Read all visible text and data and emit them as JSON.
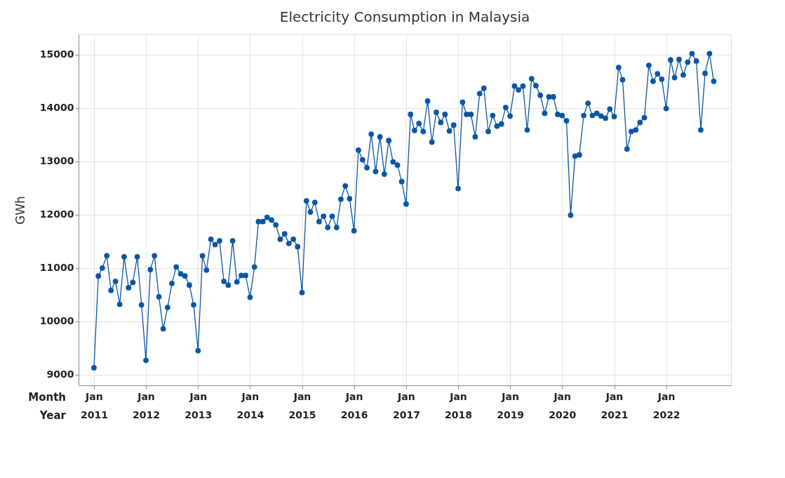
{
  "chart_data": {
    "type": "line",
    "title": "Electricity Consumption in Malaysia",
    "ylabel": "GWh",
    "annotations": [
      "Month",
      "Year"
    ],
    "x": [
      "2011-01",
      "2011-02",
      "2011-03",
      "2011-04",
      "2011-05",
      "2011-06",
      "2011-07",
      "2011-08",
      "2011-09",
      "2011-10",
      "2011-11",
      "2011-12",
      "2012-01",
      "2012-02",
      "2012-03",
      "2012-04",
      "2012-05",
      "2012-06",
      "2012-07",
      "2012-08",
      "2012-09",
      "2012-10",
      "2012-11",
      "2012-12",
      "2013-01",
      "2013-02",
      "2013-03",
      "2013-04",
      "2013-05",
      "2013-06",
      "2013-07",
      "2013-08",
      "2013-09",
      "2013-10",
      "2013-11",
      "2013-12",
      "2014-01",
      "2014-02",
      "2014-03",
      "2014-04",
      "2014-05",
      "2014-06",
      "2014-07",
      "2014-08",
      "2014-09",
      "2014-10",
      "2014-11",
      "2014-12",
      "2015-01",
      "2015-02",
      "2015-03",
      "2015-04",
      "2015-05",
      "2015-06",
      "2015-07",
      "2015-08",
      "2015-09",
      "2015-10",
      "2015-11",
      "2015-12",
      "2016-01",
      "2016-02",
      "2016-03",
      "2016-04",
      "2016-05",
      "2016-06",
      "2016-07",
      "2016-08",
      "2016-09",
      "2016-10",
      "2016-11",
      "2016-12",
      "2017-01",
      "2017-02",
      "2017-03",
      "2017-04",
      "2017-05",
      "2017-06",
      "2017-07",
      "2017-08",
      "2017-09",
      "2017-10",
      "2017-11",
      "2017-12",
      "2018-01",
      "2018-02",
      "2018-03",
      "2018-04",
      "2018-05",
      "2018-06",
      "2018-07",
      "2018-08",
      "2018-09",
      "2018-10",
      "2018-11",
      "2018-12",
      "2019-01",
      "2019-02",
      "2019-03",
      "2019-04",
      "2019-05",
      "2019-06",
      "2019-07",
      "2019-08",
      "2019-09",
      "2019-10",
      "2019-11",
      "2019-12",
      "2020-01",
      "2020-02",
      "2020-03",
      "2020-04",
      "2020-05",
      "2020-06",
      "2020-07",
      "2020-08",
      "2020-09",
      "2020-10",
      "2020-11",
      "2020-12",
      "2021-01",
      "2021-02",
      "2021-03",
      "2021-04",
      "2021-05",
      "2021-06",
      "2021-07",
      "2021-08",
      "2021-09",
      "2021-10",
      "2021-11",
      "2021-12",
      "2022-01",
      "2022-02",
      "2022-03",
      "2022-04",
      "2022-05",
      "2022-06",
      "2022-07",
      "2022-08",
      "2022-09",
      "2022-10",
      "2022-11",
      "2022-12"
    ],
    "series": [
      {
        "color": "#0b56a4",
        "values": [
          9130,
          10850,
          11000,
          11230,
          10580,
          10750,
          10320,
          11210,
          10630,
          10730,
          11210,
          10310,
          9270,
          10970,
          11230,
          10460,
          9860,
          10260,
          10710,
          11020,
          10890,
          10850,
          10680,
          10310,
          9450,
          11230,
          10960,
          11540,
          11440,
          11510,
          10750,
          10680,
          11510,
          10740,
          10860,
          10860,
          10450,
          11020,
          11870,
          11870,
          11950,
          11900,
          11810,
          11540,
          11640,
          11460,
          11540,
          11400,
          10540,
          12260,
          12050,
          12230,
          11870,
          11970,
          11760,
          11970,
          11760,
          12290,
          12540,
          12300,
          11700,
          13210,
          13030,
          12880,
          13510,
          12810,
          13460,
          12760,
          13390,
          12990,
          12930,
          12620,
          12200,
          13880,
          13580,
          13710,
          13560,
          14130,
          13360,
          13920,
          13730,
          13880,
          13570,
          13680,
          12490,
          14110,
          13880,
          13880,
          13460,
          14270,
          14370,
          13560,
          13860,
          13660,
          13700,
          14010,
          13850,
          14410,
          14340,
          14410,
          13590,
          14550,
          14420,
          14240,
          13900,
          14210,
          14210,
          13880,
          13860,
          13760,
          11990,
          13100,
          13120,
          13860,
          14090,
          13860,
          13900,
          13850,
          13810,
          13980,
          13840,
          14760,
          14530,
          13230,
          13560,
          13590,
          13730,
          13820,
          14800,
          14500,
          14640,
          14540,
          13990,
          14900,
          14570,
          14910,
          14620,
          14860,
          15020,
          14880,
          13590,
          14650,
          15020,
          14500
        ]
      }
    ],
    "xlim": [
      "2010-09-15",
      "2023-04-01"
    ],
    "xticks": [
      {
        "value": "2011-01",
        "label": "Jan\n2011"
      },
      {
        "value": "2012-01",
        "label": "Jan\n2012"
      },
      {
        "value": "2013-01",
        "label": "Jan\n2013"
      },
      {
        "value": "2014-01",
        "label": "Jan\n2014"
      },
      {
        "value": "2015-01",
        "label": "Jan\n2015"
      },
      {
        "value": "2016-01",
        "label": "Jan\n2016"
      },
      {
        "value": "2017-01",
        "label": "Jan\n2017"
      },
      {
        "value": "2018-01",
        "label": "Jan\n2018"
      },
      {
        "value": "2019-01",
        "label": "Jan\n2019"
      },
      {
        "value": "2020-01",
        "label": "Jan\n2020"
      },
      {
        "value": "2021-01",
        "label": "Jan\n2021"
      },
      {
        "value": "2022-01",
        "label": "Jan\n2022"
      }
    ],
    "ylim": [
      8800,
      15380
    ],
    "yticks": [
      9000,
      10000,
      11000,
      12000,
      13000,
      14000,
      15000
    ],
    "grid": true,
    "marker": "circle",
    "line_style": "solid"
  }
}
